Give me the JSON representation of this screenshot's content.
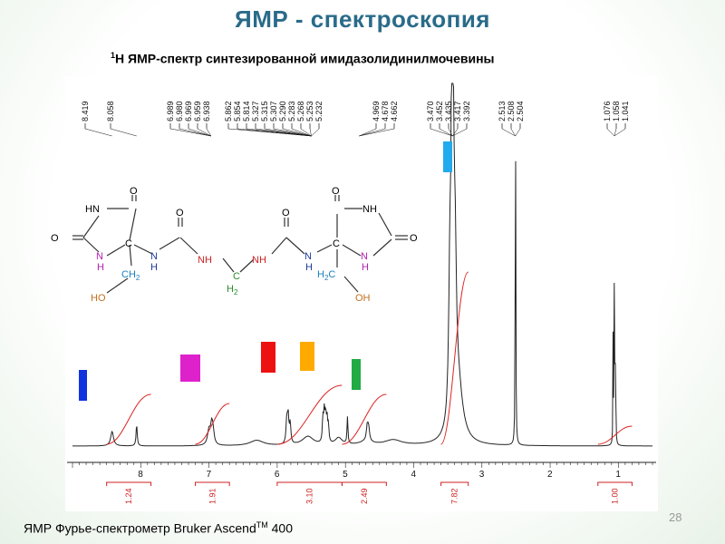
{
  "slide": {
    "title": "ЯМР - спектроскопия",
    "subtitle_sup": "1",
    "subtitle_text": "Н ЯМР-спектр синтезированной имидазолидинилмочевины",
    "footer_text": "ЯМР Фурье-спектрометр Bruker Ascend",
    "footer_sup": "TM",
    "footer_tail": " 400",
    "page_number": "28"
  },
  "chart_data": {
    "type": "line",
    "title": "",
    "xlabel": "",
    "ylabel": "",
    "x_reversed": true,
    "xlim": [
      9.0,
      0.5
    ],
    "xticks": [
      "8",
      "7",
      "6",
      "5",
      "4",
      "3",
      "2",
      "1"
    ],
    "peak_labels": {
      "group1": [
        "8.419"
      ],
      "group2": [
        "8.058"
      ],
      "group3": [
        "6.989",
        "6.980",
        "6.969",
        "6.959",
        "6.938"
      ],
      "group4": [
        "5.862",
        "5.854",
        "5.814",
        "5.327",
        "5.315",
        "5.307",
        "5.290",
        "5.283",
        "5.268",
        "5.253",
        "5.232"
      ],
      "group5": [
        "4.969",
        "4.678",
        "4.662"
      ],
      "group6": [
        "3.470",
        "3.452",
        "3.435",
        "3.417",
        "3.392"
      ],
      "group7": [
        "2.513",
        "2.508",
        "2.504"
      ],
      "group8": [
        "1.076",
        "1.058",
        "1.041"
      ]
    },
    "integrals": [
      {
        "value": "1.24",
        "range": [
          8.5,
          7.85
        ]
      },
      {
        "value": "1.91",
        "range": [
          7.2,
          6.7
        ]
      },
      {
        "value": "3.10",
        "range": [
          6.0,
          5.05
        ]
      },
      {
        "value": "2.49",
        "range": [
          5.05,
          4.4
        ]
      },
      {
        "value": "7.82",
        "range": [
          3.6,
          3.2
        ]
      },
      {
        "value": "1.00",
        "range": [
          1.3,
          0.8
        ]
      }
    ],
    "markers": [
      {
        "color": "#1133dd",
        "shift": 8.42
      },
      {
        "color": "#dd22cc",
        "shift": 6.97
      },
      {
        "color": "#ee1111",
        "shift": 5.85
      },
      {
        "color": "#ffaa00",
        "shift": 5.3
      },
      {
        "color": "#22aa44",
        "shift": 4.67
      },
      {
        "color": "#22aaee",
        "shift": 3.43
      }
    ],
    "integral_color": "#dd2222",
    "axis_color": "#cc2222"
  },
  "molecule": {
    "atoms": {
      "hn_left": "HN",
      "o_left_ring": "O",
      "o_left_keto": "O",
      "nh_ring_left": "N",
      "nh_ring_left_h": "H",
      "c_left": "C",
      "n_left": "N",
      "n_left_h": "H",
      "ch2_left": "CH",
      "ch2_left_sub": "2",
      "ho_left": "HO",
      "o_urea_left": "O",
      "nh_mid_left": "NH",
      "ch2_mid": "C",
      "ch2_mid_h": "H",
      "ch2_mid_sub": "2",
      "nh_mid_right": "NH",
      "o_urea_right": "O",
      "n_right": "N",
      "n_right_h": "H",
      "c_right": "C",
      "h2c_right": "H",
      "h2c_right_sub": "2",
      "h2c_right_c": "C",
      "oh_right": "OH",
      "o_right_keto": "O",
      "nh_right_ring": "NH",
      "o_right_ring": "O",
      "nh_ring_right": "N",
      "nh_ring_right_h": "H"
    }
  }
}
